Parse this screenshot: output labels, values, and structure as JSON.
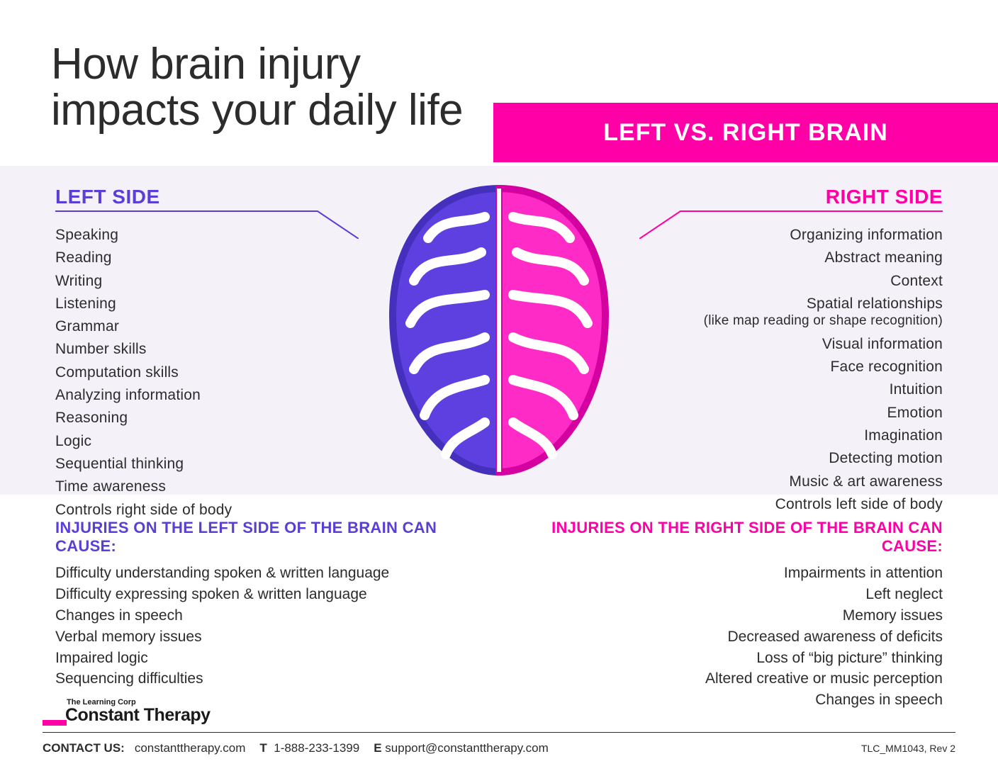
{
  "colors": {
    "left_purple": "#5a3fd6",
    "right_magenta": "#ff00a6",
    "banner_bg": "#ff00a6",
    "mid_bg": "#f4f1f8",
    "text": "#2c2c2c",
    "page_bg": "#ffffff",
    "brain_left_fill": "#5e3fe0",
    "brain_left_outline": "#452fbd",
    "brain_right_fill": "#ff2bc7",
    "brain_right_outline": "#d400a0"
  },
  "title_line1": "How brain injury",
  "title_line2": "impacts your daily life",
  "banner": "LEFT VS. RIGHT BRAIN",
  "left": {
    "heading": "LEFT SIDE",
    "items": [
      "Speaking",
      "Reading",
      "Writing",
      "Listening",
      "Grammar",
      "Number skills",
      "Computation skills",
      "Analyzing information",
      "Reasoning",
      "Logic",
      "Sequential thinking",
      "Time awareness",
      "Controls right side of body"
    ]
  },
  "right": {
    "heading": "RIGHT SIDE",
    "items": [
      "Organizing information",
      "Abstract meaning",
      "Context",
      "Spatial relationships",
      "(like map reading or shape recognition)",
      "Visual information",
      "Face recognition",
      "Intuition",
      "Emotion",
      "Imagination",
      "Detecting motion",
      "Music & art awareness",
      "Controls left side of body"
    ],
    "sub_indices": [
      4
    ]
  },
  "injuries": {
    "left_heading": "INJURIES ON THE LEFT SIDE OF THE BRAIN CAN CAUSE:",
    "left_items": [
      "Difficulty understanding spoken & written language",
      "Difficulty expressing spoken & written language",
      "Changes in speech",
      "Verbal memory issues",
      "Impaired logic",
      "Sequencing difficulties"
    ],
    "right_heading": "INJURIES ON THE RIGHT SIDE OF THE BRAIN CAN CAUSE:",
    "right_items": [
      "Impairments in attention",
      "Left neglect",
      "Memory issues",
      "Decreased awareness of deficits",
      "Loss of “big picture” thinking",
      "Altered creative or music perception",
      "Changes in speech"
    ]
  },
  "logo": {
    "small": "The Learning Corp",
    "big": "Constant Therapy"
  },
  "footer": {
    "contact_label": "CONTACT US:",
    "web": "constanttherapy.com",
    "phone_label": "T",
    "phone": "1-888-233-1399",
    "email_label": "E",
    "email": "support@constanttherapy.com",
    "doc_id": "TLC_MM1043, Rev 2"
  }
}
